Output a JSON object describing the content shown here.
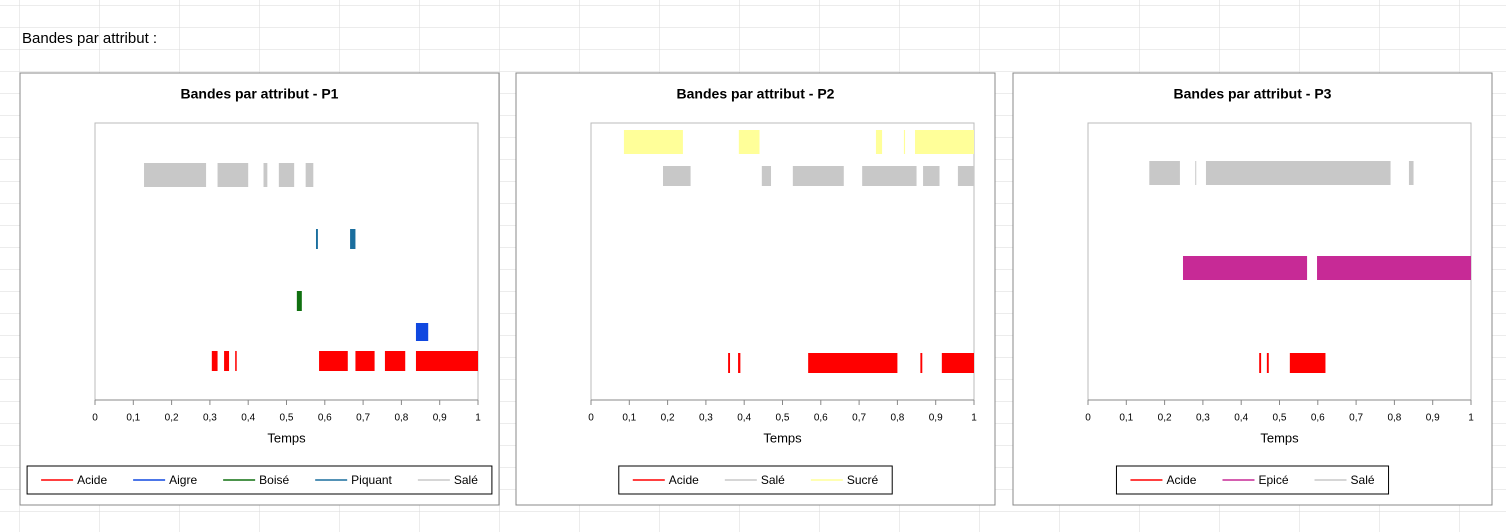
{
  "sheet_label": "Bandes par attribut :",
  "chart_data": [
    {
      "type": "band",
      "title": "Bandes par attribut - P1",
      "x_label": "Temps",
      "xlim": [
        0,
        1
      ],
      "xticks": [
        0,
        {
          "value": 0.1,
          "label": "0,1"
        },
        {
          "value": 0.2,
          "label": "0,2"
        },
        {
          "value": 0.3,
          "label": "0,3"
        },
        {
          "value": 0.4,
          "label": "0,4"
        },
        {
          "value": 0.5,
          "label": "0,5"
        },
        {
          "value": 0.6,
          "label": "0,6"
        },
        {
          "value": 0.7,
          "label": "0,7"
        },
        {
          "value": 0.8,
          "label": "0,8"
        },
        {
          "value": 0.9,
          "label": "0,9"
        },
        1
      ],
      "series": [
        {
          "name": "Acide",
          "color": "#ff0000",
          "segments": [
            [
              0.305,
              0.32
            ],
            [
              0.337,
              0.35
            ],
            [
              0.366,
              0.37
            ],
            [
              0.585,
              0.66
            ],
            [
              0.68,
              0.73
            ],
            [
              0.757,
              0.81
            ],
            [
              0.838,
              1
            ]
          ]
        },
        {
          "name": "Aigre",
          "color": "#1048e0",
          "segments": [
            [
              0.838,
              0.87
            ]
          ]
        },
        {
          "name": "Boisé",
          "color": "#107010",
          "segments": [
            [
              0.527,
              0.54
            ]
          ]
        },
        {
          "name": "Piquant",
          "color": "#1a6e9e",
          "segments": [
            [
              0.577,
              0.582
            ],
            [
              0.666,
              0.68
            ]
          ]
        },
        {
          "name": "Salé",
          "color": "#c8c8c8",
          "segments": [
            [
              0.128,
              0.29
            ],
            [
              0.32,
              0.4
            ],
            [
              0.44,
              0.45
            ],
            [
              0.48,
              0.52
            ],
            [
              0.55,
              0.57
            ]
          ]
        }
      ]
    },
    {
      "type": "band",
      "title": "Bandes par attribut - P2",
      "x_label": "Temps",
      "xlim": [
        0,
        1
      ],
      "xticks": [
        0,
        {
          "value": 0.1,
          "label": "0,1"
        },
        {
          "value": 0.2,
          "label": "0,2"
        },
        {
          "value": 0.3,
          "label": "0,3"
        },
        {
          "value": 0.4,
          "label": "0,4"
        },
        {
          "value": 0.5,
          "label": "0,5"
        },
        {
          "value": 0.6,
          "label": "0,6"
        },
        {
          "value": 0.7,
          "label": "0,7"
        },
        {
          "value": 0.8,
          "label": "0,8"
        },
        {
          "value": 0.9,
          "label": "0,9"
        },
        1
      ],
      "series": [
        {
          "name": "Acide",
          "color": "#ff0000",
          "segments": [
            [
              0.358,
              0.363
            ],
            [
              0.384,
              0.39
            ],
            [
              0.567,
              0.8
            ],
            [
              0.86,
              0.865
            ],
            [
              0.916,
              1
            ]
          ]
        },
        {
          "name": "Salé",
          "color": "#c8c8c8",
          "segments": [
            [
              0.188,
              0.26
            ],
            [
              0.446,
              0.47
            ],
            [
              0.527,
              0.66
            ],
            [
              0.708,
              0.85
            ],
            [
              0.867,
              0.91
            ],
            [
              0.958,
              1
            ]
          ]
        },
        {
          "name": "Sucré",
          "color": "#ffff99",
          "segments": [
            [
              0.086,
              0.24
            ],
            [
              0.386,
              0.44
            ],
            [
              0.744,
              0.76
            ],
            [
              0.817,
              0.82
            ],
            [
              0.846,
              1
            ]
          ]
        }
      ]
    },
    {
      "type": "band",
      "title": "Bandes par attribut - P3",
      "x_label": "Temps",
      "xlim": [
        0,
        1
      ],
      "xticks": [
        0,
        {
          "value": 0.1,
          "label": "0,1"
        },
        {
          "value": 0.2,
          "label": "0,2"
        },
        {
          "value": 0.3,
          "label": "0,3"
        },
        {
          "value": 0.4,
          "label": "0,4"
        },
        {
          "value": 0.5,
          "label": "0,5"
        },
        {
          "value": 0.6,
          "label": "0,6"
        },
        {
          "value": 0.7,
          "label": "0,7"
        },
        {
          "value": 0.8,
          "label": "0,8"
        },
        {
          "value": 0.9,
          "label": "0,9"
        },
        1
      ],
      "series": [
        {
          "name": "Acide",
          "color": "#ff0000",
          "segments": [
            [
              0.447,
              0.452
            ],
            [
              0.467,
              0.472
            ],
            [
              0.527,
              0.62
            ]
          ]
        },
        {
          "name": "Epicé",
          "color": "#c72a96",
          "segments": [
            [
              0.248,
              0.572
            ],
            [
              0.598,
              1
            ]
          ]
        },
        {
          "name": "Salé",
          "color": "#c8c8c8",
          "segments": [
            [
              0.16,
              0.24
            ],
            [
              0.28,
              0.282
            ],
            [
              0.308,
              0.79
            ],
            [
              0.838,
              0.85
            ]
          ]
        }
      ]
    }
  ]
}
